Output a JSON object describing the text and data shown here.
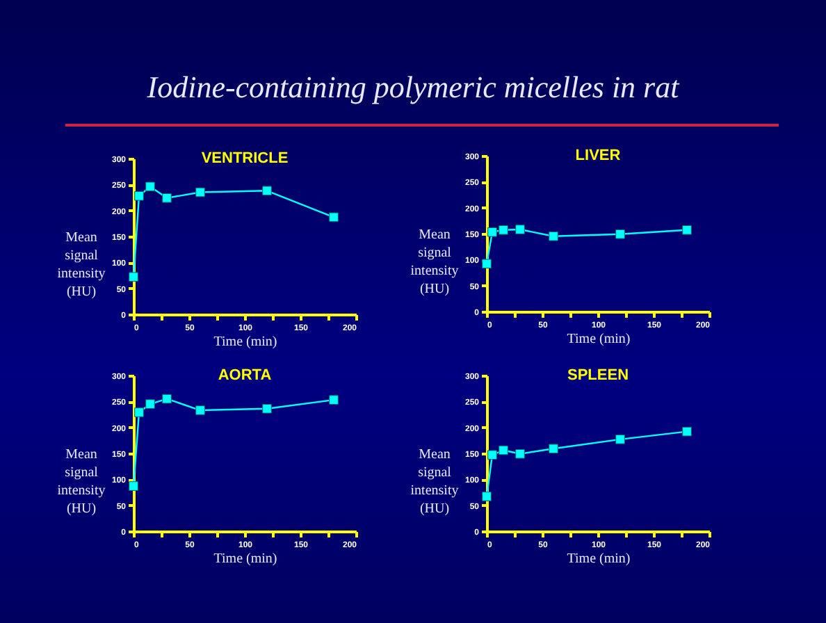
{
  "chart_data": [
    {
      "type": "line",
      "title": "VENTRICLE",
      "xlabel": "Time (min)",
      "ylabel": "Mean signal intensity (HU)",
      "annotations": [
        "Iodine-containing polymeric micelles in rat"
      ],
      "x": [
        0,
        5,
        15,
        30,
        60,
        120,
        180
      ],
      "series": [
        {
          "color": "#00ffff",
          "values": [
            72,
            228,
            246,
            224,
            235,
            238,
            187
          ]
        }
      ],
      "xlim": [
        0,
        200
      ],
      "xticks": [
        0,
        {
          "value": 25,
          "label": null
        },
        50,
        {
          "value": 75,
          "label": null
        },
        100,
        {
          "value": 125,
          "label": null
        },
        150,
        {
          "value": 175,
          "label": null
        },
        200
      ],
      "ylim": [
        0,
        300
      ],
      "yticks": [
        0,
        50,
        100,
        150,
        200,
        250,
        300
      ],
      "grid": false,
      "marker": "square",
      "line_style": "solid"
    },
    {
      "type": "line",
      "title": "LIVER",
      "xlabel": "Time (min)",
      "ylabel": "Mean signal intensity (HU)",
      "x": [
        0,
        5,
        15,
        30,
        60,
        120,
        180
      ],
      "series": [
        {
          "color": "#00ffff",
          "values": [
            92,
            153,
            157,
            158,
            145,
            149,
            157
          ]
        }
      ],
      "xlim": [
        0,
        200
      ],
      "xticks": [
        0,
        {
          "value": 25,
          "label": null
        },
        50,
        {
          "value": 75,
          "label": null
        },
        100,
        {
          "value": 125,
          "label": null
        },
        150,
        {
          "value": 175,
          "label": null
        },
        200
      ],
      "ylim": [
        0,
        300
      ],
      "yticks": [
        0,
        50,
        100,
        150,
        200,
        250,
        300
      ],
      "grid": false,
      "marker": "square",
      "line_style": "solid"
    },
    {
      "type": "line",
      "title": "AORTA",
      "xlabel": "Time (min)",
      "ylabel": "Mean signal intensity (HU)",
      "x": [
        0,
        5,
        15,
        30,
        60,
        120,
        180
      ],
      "series": [
        {
          "color": "#00ffff",
          "values": [
            87,
            229,
            245,
            255,
            233,
            236,
            253
          ]
        }
      ],
      "xlim": [
        0,
        200
      ],
      "xticks": [
        0,
        {
          "value": 25,
          "label": null
        },
        50,
        {
          "value": 75,
          "label": null
        },
        100,
        {
          "value": 125,
          "label": null
        },
        150,
        {
          "value": 175,
          "label": null
        },
        200
      ],
      "ylim": [
        0,
        300
      ],
      "yticks": [
        0,
        50,
        100,
        150,
        200,
        250,
        300
      ],
      "grid": false,
      "marker": "square",
      "line_style": "solid"
    },
    {
      "type": "line",
      "title": "SPLEEN",
      "xlabel": "Time (min)",
      "ylabel": "Mean signal intensity (HU)",
      "x": [
        0,
        5,
        15,
        30,
        60,
        120,
        180
      ],
      "series": [
        {
          "color": "#00ffff",
          "values": [
            67,
            147,
            156,
            149,
            159,
            177,
            192
          ]
        }
      ],
      "xlim": [
        0,
        200
      ],
      "xticks": [
        0,
        {
          "value": 25,
          "label": null
        },
        50,
        {
          "value": 75,
          "label": null
        },
        100,
        {
          "value": 125,
          "label": null
        },
        150,
        {
          "value": 175,
          "label": null
        },
        200
      ],
      "ylim": [
        0,
        300
      ],
      "yticks": [
        0,
        50,
        100,
        150,
        200,
        250,
        300
      ],
      "grid": false,
      "marker": "square",
      "line_style": "solid"
    }
  ]
}
